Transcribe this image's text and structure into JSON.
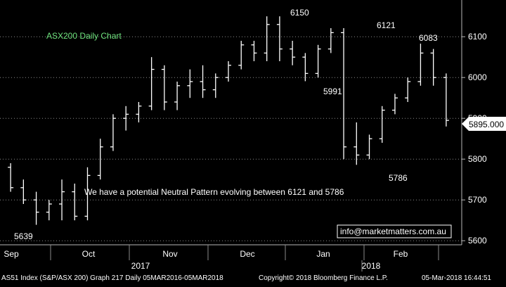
{
  "chart_data": {
    "type": "ohlc",
    "title": "ASX200 Daily Chart",
    "annotation": "We have a potential Neutral Pattern evolving between 6121 and 5786",
    "contact": "info@marketmatters.com.au",
    "ylim": [
      5590,
      6190
    ],
    "yticks": [
      5600,
      5700,
      5800,
      5900,
      6000,
      6100
    ],
    "grid": true,
    "last_price": "5895.000",
    "x_months": [
      "Sep",
      "Oct",
      "Nov",
      "Dec",
      "Jan",
      "Feb"
    ],
    "x_years": [
      "2017",
      "2018"
    ],
    "peak_labels": [
      "5639",
      "6150",
      "6121",
      "6083",
      "5991",
      "5786"
    ],
    "ohlc_weekly_approx": [
      {
        "week": 1,
        "open": 5780,
        "high": 5790,
        "low": 5720,
        "close": 5730
      },
      {
        "week": 2,
        "open": 5730,
        "high": 5750,
        "low": 5690,
        "close": 5700
      },
      {
        "week": 3,
        "open": 5700,
        "high": 5720,
        "low": 5639,
        "close": 5670
      },
      {
        "week": 4,
        "open": 5670,
        "high": 5700,
        "low": 5650,
        "close": 5690
      },
      {
        "week": 5,
        "open": 5690,
        "high": 5750,
        "low": 5650,
        "close": 5720
      },
      {
        "week": 6,
        "open": 5720,
        "high": 5740,
        "low": 5650,
        "close": 5660
      },
      {
        "week": 7,
        "open": 5660,
        "high": 5780,
        "low": 5650,
        "close": 5760
      },
      {
        "week": 8,
        "open": 5760,
        "high": 5850,
        "low": 5750,
        "close": 5830
      },
      {
        "week": 9,
        "open": 5830,
        "high": 5910,
        "low": 5820,
        "close": 5900
      },
      {
        "week": 10,
        "open": 5900,
        "high": 5930,
        "low": 5870,
        "close": 5910
      },
      {
        "week": 11,
        "open": 5910,
        "high": 5940,
        "low": 5890,
        "close": 5930
      },
      {
        "week": 12,
        "open": 5930,
        "high": 6050,
        "low": 5920,
        "close": 6020
      },
      {
        "week": 13,
        "open": 6020,
        "high": 6030,
        "low": 5920,
        "close": 5940
      },
      {
        "week": 14,
        "open": 5940,
        "high": 5990,
        "low": 5920,
        "close": 5980
      },
      {
        "week": 15,
        "open": 5980,
        "high": 6020,
        "low": 5950,
        "close": 5990
      },
      {
        "week": 16,
        "open": 5990,
        "high": 6030,
        "low": 5950,
        "close": 5970
      },
      {
        "week": 17,
        "open": 5970,
        "high": 6010,
        "low": 5950,
        "close": 6000
      },
      {
        "week": 18,
        "open": 6000,
        "high": 6040,
        "low": 5990,
        "close": 6030
      },
      {
        "week": 19,
        "open": 6030,
        "high": 6090,
        "low": 6020,
        "close": 6080
      },
      {
        "week": 20,
        "open": 6080,
        "high": 6090,
        "low": 6040,
        "close": 6060
      },
      {
        "week": 21,
        "open": 6060,
        "high": 6150,
        "low": 6040,
        "close": 6130
      },
      {
        "week": 22,
        "open": 6130,
        "high": 6150,
        "low": 6040,
        "close": 6070
      },
      {
        "week": 23,
        "open": 6070,
        "high": 6090,
        "low": 6030,
        "close": 6050
      },
      {
        "week": 24,
        "open": 6050,
        "high": 6060,
        "low": 5991,
        "close": 6010
      },
      {
        "week": 25,
        "open": 6010,
        "high": 6080,
        "low": 6000,
        "close": 6070
      },
      {
        "week": 26,
        "open": 6070,
        "high": 6121,
        "low": 6060,
        "close": 6110
      },
      {
        "week": 27,
        "open": 6110,
        "high": 6121,
        "low": 5800,
        "close": 5830
      },
      {
        "week": 28,
        "open": 5830,
        "high": 5890,
        "low": 5786,
        "close": 5810
      },
      {
        "week": 29,
        "open": 5810,
        "high": 5860,
        "low": 5800,
        "close": 5850
      },
      {
        "week": 30,
        "open": 5850,
        "high": 5930,
        "low": 5840,
        "close": 5920
      },
      {
        "week": 31,
        "open": 5920,
        "high": 5960,
        "low": 5910,
        "close": 5950
      },
      {
        "week": 32,
        "open": 5950,
        "high": 6000,
        "low": 5940,
        "close": 5990
      },
      {
        "week": 33,
        "open": 5990,
        "high": 6083,
        "low": 5980,
        "close": 6060
      },
      {
        "week": 34,
        "open": 6060,
        "high": 6070,
        "low": 5980,
        "close": 6000
      },
      {
        "week": 35,
        "open": 6000,
        "high": 6010,
        "low": 5880,
        "close": 5895
      }
    ]
  },
  "footer": {
    "index_label": "AS51 Index (S&P/ASX 200) Graph 217  Daily 05MAR2016-05MAR2018",
    "copyright": "Copyright© 2018 Bloomberg Finance L.P.",
    "timestamp": "05-Mar-2018 16:44:51"
  }
}
